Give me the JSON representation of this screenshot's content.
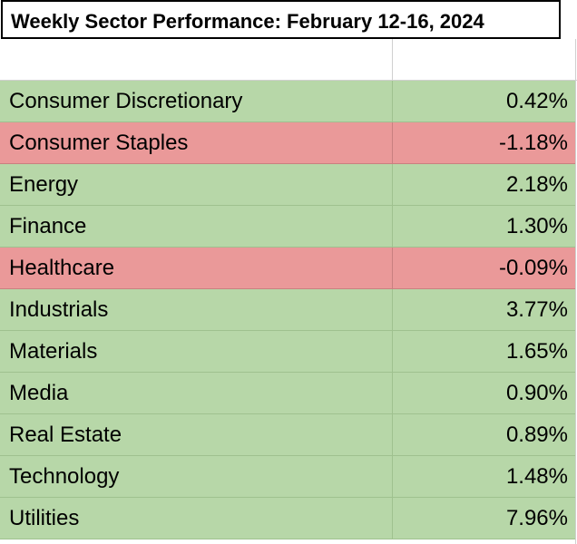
{
  "header": {
    "title": "Weekly Sector Performance: February 12-16, 2024"
  },
  "table": {
    "rows": [
      [
        "Consumer Discretionary",
        "0.42%"
      ],
      [
        "Consumer Staples",
        "-1.18%"
      ],
      [
        "Energy",
        "2.18%"
      ],
      [
        "Finance",
        "1.30%"
      ],
      [
        "Healthcare",
        "-0.09%"
      ],
      [
        "Industrials",
        "3.77%"
      ],
      [
        "Materials",
        "1.65%"
      ],
      [
        "Media",
        "0.90%"
      ],
      [
        "Real Estate",
        "0.89%"
      ],
      [
        "Technology",
        "1.48%"
      ],
      [
        "Utilities",
        "7.96%"
      ]
    ]
  }
}
